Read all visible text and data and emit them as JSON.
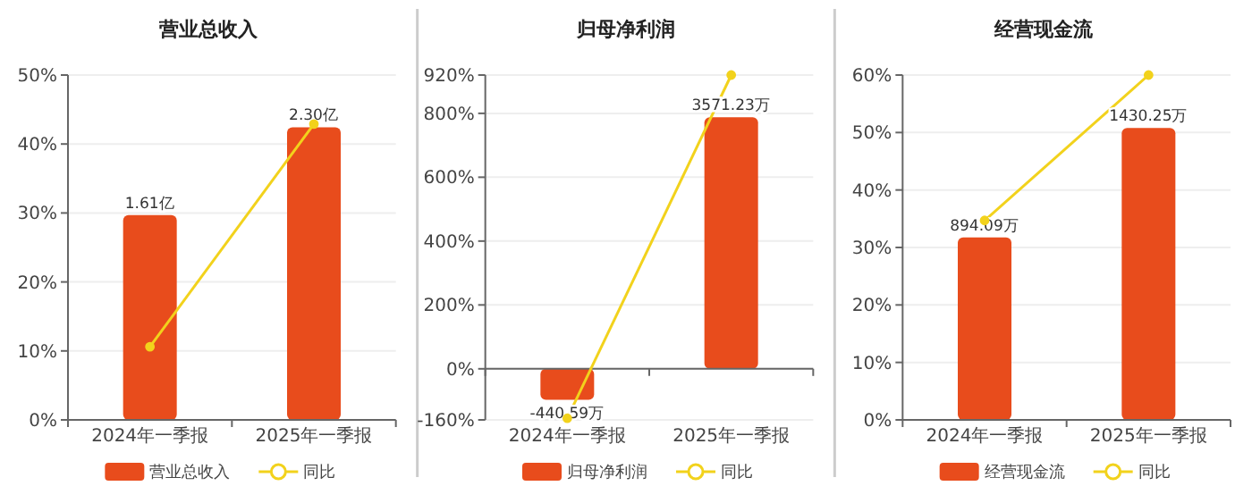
{
  "chart_data": [
    {
      "type": "bar",
      "title": "营业总收入",
      "categories": [
        "2024年一季报",
        "2025年一季报"
      ],
      "series": [
        {
          "name": "营业总收入",
          "axis": "y2",
          "color": "#e84c1c",
          "values": [
            1.61,
            2.3
          ],
          "value_labels": [
            "1.61亿",
            "2.30亿"
          ]
        },
        {
          "name": "同比",
          "type": "line",
          "color": "#f2d21c",
          "values": [
            10.6,
            42.9
          ]
        }
      ],
      "ylim": [
        0,
        50
      ],
      "yticks": [
        {
          "value": 0,
          "label": "0%"
        },
        {
          "value": 10,
          "label": "10%"
        },
        {
          "value": 20,
          "label": "20%"
        },
        {
          "value": 30,
          "label": "30%"
        },
        {
          "value": 40,
          "label": "40%"
        },
        {
          "value": 50,
          "label": "50%"
        }
      ],
      "y2lim": [
        0,
        2.71
      ],
      "grid": "y",
      "legend": "bottom",
      "marker": "circle"
    },
    {
      "type": "bar",
      "title": "归母净利润",
      "categories": [
        "2024年一季报",
        "2025年一季报"
      ],
      "series": [
        {
          "name": "归母净利润",
          "axis": "y2",
          "color": "#e84c1c",
          "values": [
            -440.59,
            3571.23
          ],
          "value_labels": [
            "-440.59万",
            "3571.23万"
          ]
        },
        {
          "name": "同比",
          "type": "line",
          "color": "#f2d21c",
          "values": [
            -155,
            920
          ]
        }
      ],
      "ylim": [
        -160,
        920
      ],
      "yticks": [
        {
          "value": -160,
          "label": "-160%"
        },
        {
          "value": 0,
          "label": "0%"
        },
        {
          "value": 200,
          "label": "200%"
        },
        {
          "value": 400,
          "label": "400%"
        },
        {
          "value": 600,
          "label": "600%"
        },
        {
          "value": 800,
          "label": "800%"
        },
        {
          "value": 920,
          "label": "920%"
        }
      ],
      "y2lim": [
        -725,
        4169
      ],
      "grid": "y",
      "legend": "bottom",
      "marker": "circle"
    },
    {
      "type": "bar",
      "title": "经营现金流",
      "categories": [
        "2024年一季报",
        "2025年一季报"
      ],
      "series": [
        {
          "name": "经营现金流",
          "axis": "y2",
          "color": "#e84c1c",
          "values": [
            894.09,
            1430.25
          ],
          "value_labels": [
            "894.09万",
            "1430.25万"
          ]
        },
        {
          "name": "同比",
          "type": "line",
          "color": "#f2d21c",
          "values": [
            34.7,
            60
          ]
        }
      ],
      "ylim": [
        0,
        60
      ],
      "yticks": [
        {
          "value": 0,
          "label": "0%"
        },
        {
          "value": 10,
          "label": "10%"
        },
        {
          "value": 20,
          "label": "20%"
        },
        {
          "value": 30,
          "label": "30%"
        },
        {
          "value": 40,
          "label": "40%"
        },
        {
          "value": 50,
          "label": "50%"
        },
        {
          "value": 60,
          "label": "60%"
        }
      ],
      "y2lim": [
        0,
        1689
      ],
      "grid": "y",
      "legend": "bottom",
      "marker": "circle"
    }
  ]
}
